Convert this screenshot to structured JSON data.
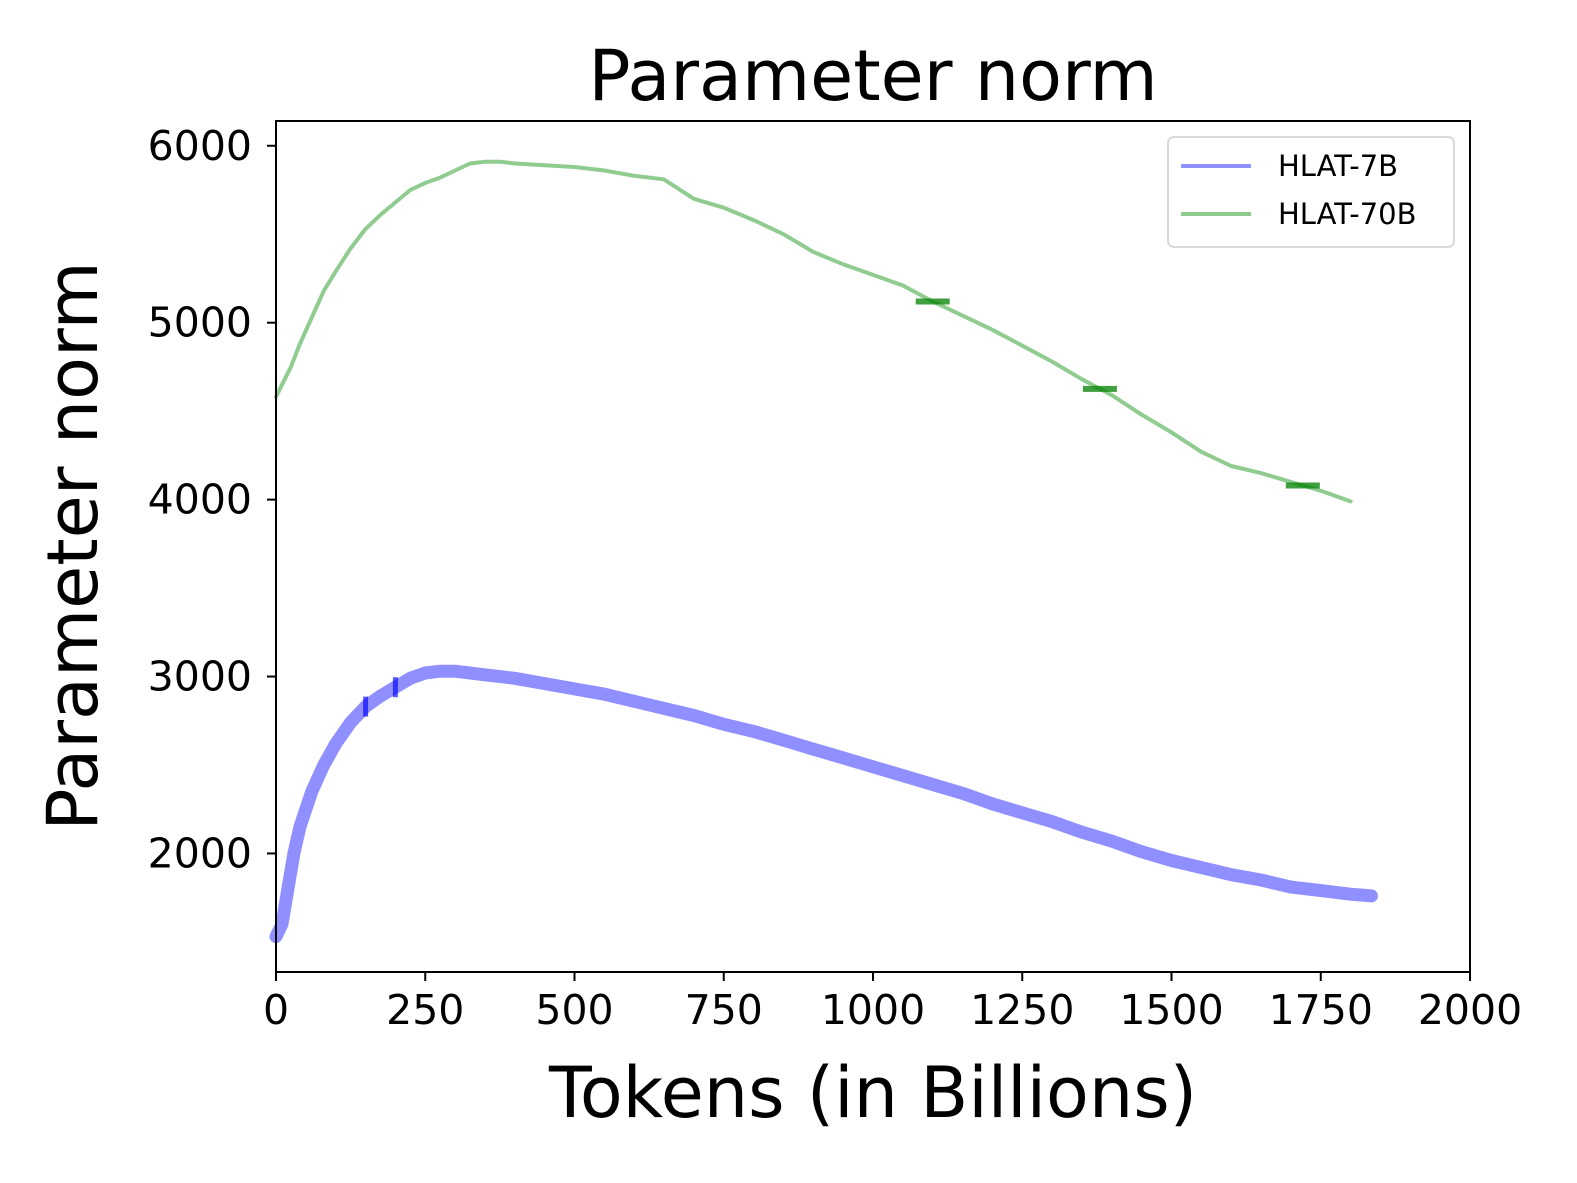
{
  "chart_data": {
    "type": "line",
    "title": "Parameter norm",
    "xlabel": "Tokens (in Billions)",
    "ylabel": "Parameter norm",
    "xlim": [
      0,
      2000
    ],
    "ylim": [
      1330,
      6140
    ],
    "xticks": [
      0,
      250,
      500,
      750,
      1000,
      1250,
      1500,
      1750,
      2000
    ],
    "yticks": [
      2000,
      3000,
      4000,
      5000,
      6000
    ],
    "grid": false,
    "legend_position": "top-right",
    "series": [
      {
        "name": "HLAT-7B",
        "color": "#8f8fff",
        "dark_color": "#0000ff",
        "points": [
          [
            0,
            1530
          ],
          [
            10,
            1600
          ],
          [
            20,
            1800
          ],
          [
            30,
            2000
          ],
          [
            40,
            2150
          ],
          [
            60,
            2350
          ],
          [
            80,
            2500
          ],
          [
            100,
            2620
          ],
          [
            125,
            2740
          ],
          [
            150,
            2830
          ],
          [
            175,
            2890
          ],
          [
            200,
            2940
          ],
          [
            225,
            2990
          ],
          [
            250,
            3020
          ],
          [
            275,
            3030
          ],
          [
            300,
            3030
          ],
          [
            350,
            3010
          ],
          [
            400,
            2990
          ],
          [
            450,
            2960
          ],
          [
            500,
            2930
          ],
          [
            550,
            2900
          ],
          [
            600,
            2860
          ],
          [
            650,
            2820
          ],
          [
            700,
            2780
          ],
          [
            750,
            2730
          ],
          [
            800,
            2690
          ],
          [
            850,
            2640
          ],
          [
            900,
            2590
          ],
          [
            950,
            2540
          ],
          [
            1000,
            2490
          ],
          [
            1050,
            2440
          ],
          [
            1100,
            2390
          ],
          [
            1150,
            2340
          ],
          [
            1200,
            2280
          ],
          [
            1250,
            2230
          ],
          [
            1300,
            2180
          ],
          [
            1350,
            2120
          ],
          [
            1400,
            2070
          ],
          [
            1450,
            2010
          ],
          [
            1500,
            1960
          ],
          [
            1550,
            1920
          ],
          [
            1600,
            1880
          ],
          [
            1650,
            1850
          ],
          [
            1700,
            1810
          ],
          [
            1750,
            1790
          ],
          [
            1800,
            1770
          ],
          [
            1835,
            1760
          ]
        ],
        "dark_x": [
          150,
          200
        ]
      },
      {
        "name": "HLAT-70B",
        "color": "#90cc90",
        "dark_color": "#008000",
        "points": [
          [
            0,
            4580
          ],
          [
            10,
            4650
          ],
          [
            25,
            4750
          ],
          [
            40,
            4880
          ],
          [
            60,
            5030
          ],
          [
            80,
            5180
          ],
          [
            100,
            5290
          ],
          [
            125,
            5420
          ],
          [
            150,
            5530
          ],
          [
            175,
            5610
          ],
          [
            200,
            5680
          ],
          [
            225,
            5750
          ],
          [
            250,
            5790
          ],
          [
            275,
            5820
          ],
          [
            300,
            5860
          ],
          [
            325,
            5900
          ],
          [
            350,
            5910
          ],
          [
            375,
            5910
          ],
          [
            400,
            5900
          ],
          [
            450,
            5890
          ],
          [
            500,
            5880
          ],
          [
            550,
            5860
          ],
          [
            600,
            5830
          ],
          [
            650,
            5810
          ],
          [
            700,
            5700
          ],
          [
            750,
            5650
          ],
          [
            800,
            5580
          ],
          [
            850,
            5500
          ],
          [
            900,
            5400
          ],
          [
            950,
            5330
          ],
          [
            1000,
            5270
          ],
          [
            1050,
            5210
          ],
          [
            1100,
            5120
          ],
          [
            1150,
            5040
          ],
          [
            1200,
            4960
          ],
          [
            1250,
            4870
          ],
          [
            1300,
            4780
          ],
          [
            1350,
            4680
          ],
          [
            1400,
            4590
          ],
          [
            1450,
            4480
          ],
          [
            1500,
            4380
          ],
          [
            1550,
            4270
          ],
          [
            1600,
            4190
          ],
          [
            1650,
            4150
          ],
          [
            1700,
            4100
          ],
          [
            1750,
            4050
          ],
          [
            1800,
            3990
          ]
        ],
        "dark_x": [
          1100,
          1380,
          1720
        ]
      }
    ]
  }
}
